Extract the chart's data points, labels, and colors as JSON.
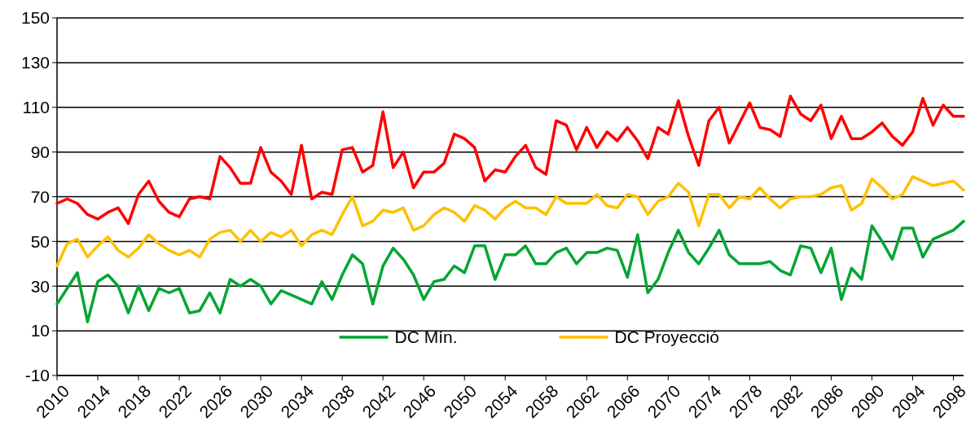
{
  "chart_data": {
    "type": "line",
    "x": [
      2010,
      2011,
      2012,
      2013,
      2014,
      2015,
      2016,
      2017,
      2018,
      2019,
      2020,
      2021,
      2022,
      2023,
      2024,
      2025,
      2026,
      2027,
      2028,
      2029,
      2030,
      2031,
      2032,
      2033,
      2034,
      2035,
      2036,
      2037,
      2038,
      2039,
      2040,
      2041,
      2042,
      2043,
      2044,
      2045,
      2046,
      2047,
      2048,
      2049,
      2050,
      2051,
      2052,
      2053,
      2054,
      2055,
      2056,
      2057,
      2058,
      2059,
      2060,
      2061,
      2062,
      2063,
      2064,
      2065,
      2066,
      2067,
      2068,
      2069,
      2070,
      2071,
      2072,
      2073,
      2074,
      2075,
      2076,
      2077,
      2078,
      2079,
      2080,
      2081,
      2082,
      2083,
      2084,
      2085,
      2086,
      2087,
      2088,
      2089,
      2090,
      2091,
      2092,
      2093,
      2094,
      2095,
      2096,
      2097,
      2098,
      2099
    ],
    "series": [
      {
        "color": "#ff0000",
        "values": [
          67,
          69,
          67,
          62,
          60,
          63,
          65,
          58,
          71,
          77,
          68,
          63,
          61,
          69,
          70,
          69,
          88,
          83,
          76,
          76,
          92,
          81,
          77,
          71,
          93,
          69,
          72,
          71,
          91,
          92,
          81,
          84,
          108,
          83,
          90,
          74,
          81,
          81,
          85,
          98,
          96,
          92,
          77,
          82,
          81,
          88,
          93,
          83,
          80,
          104,
          102,
          91,
          101,
          92,
          99,
          95,
          101,
          95,
          87,
          101,
          98,
          113,
          97,
          84,
          104,
          110,
          94,
          103,
          112,
          101,
          100,
          97,
          115,
          107,
          104,
          111,
          96,
          106,
          96,
          96,
          99,
          103,
          97,
          93,
          99,
          114,
          102,
          111,
          106,
          106
        ]
      },
      {
        "name": "DC Mín.",
        "color": "#00a632",
        "values": [
          22,
          29,
          36,
          14,
          32,
          35,
          30,
          18,
          30,
          19,
          29,
          27,
          29,
          18,
          19,
          27,
          18,
          33,
          30,
          33,
          30,
          22,
          28,
          26,
          24,
          22,
          32,
          24,
          35,
          44,
          40,
          22,
          39,
          47,
          42,
          35,
          24,
          32,
          33,
          39,
          36,
          48,
          48,
          33,
          44,
          44,
          48,
          40,
          40,
          45,
          47,
          40,
          45,
          45,
          47,
          46,
          34,
          53,
          27,
          33,
          45,
          55,
          45,
          40,
          47,
          55,
          44,
          40,
          40,
          40,
          41,
          37,
          35,
          48,
          47,
          36,
          47,
          24,
          38,
          33,
          57,
          50,
          42,
          56,
          56,
          43,
          51,
          53,
          55,
          59
        ]
      },
      {
        "name": "DC Proyecció",
        "color": "#ffc000",
        "values": [
          39,
          49,
          51,
          43,
          48,
          52,
          46,
          43,
          47,
          53,
          49,
          46,
          44,
          46,
          43,
          51,
          54,
          55,
          50,
          55,
          50,
          54,
          52,
          55,
          48,
          53,
          55,
          53,
          62,
          70,
          57,
          59,
          64,
          63,
          65,
          55,
          57,
          62,
          65,
          63,
          59,
          66,
          64,
          60,
          65,
          68,
          65,
          65,
          62,
          70,
          67,
          67,
          67,
          71,
          66,
          65,
          71,
          70,
          62,
          68,
          70,
          76,
          72,
          57,
          71,
          71,
          65,
          70,
          69,
          74,
          69,
          65,
          69,
          70,
          70,
          71,
          74,
          75,
          64,
          67,
          78,
          74,
          69,
          71,
          79,
          77,
          75,
          76,
          77,
          73
        ]
      }
    ],
    "xlim": [
      2010,
      2099
    ],
    "xticks": [
      2010,
      2014,
      2018,
      2022,
      2026,
      2030,
      2034,
      2038,
      2042,
      2046,
      2050,
      2054,
      2058,
      2062,
      2066,
      2070,
      2074,
      2078,
      2082,
      2086,
      2090,
      2094,
      2098
    ],
    "ylim": [
      -10,
      150
    ],
    "yticks": [
      -10,
      10,
      30,
      50,
      70,
      90,
      110,
      130,
      150
    ],
    "grid": "y",
    "legend": "bottom",
    "marker": "none",
    "line_style": "solid"
  }
}
